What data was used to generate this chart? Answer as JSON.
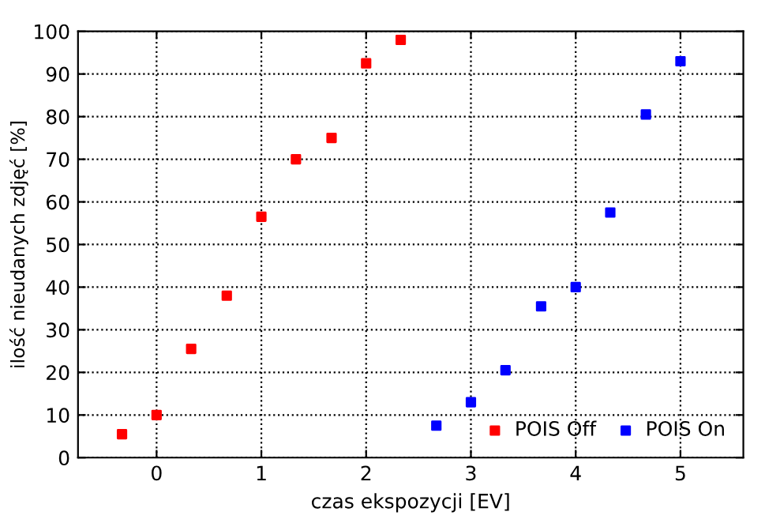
{
  "chart_data": {
    "type": "scatter",
    "xlabel": "czas ekspozycji [EV]",
    "ylabel": "ilość nieudanych zdjęć [%]",
    "series": [
      {
        "name": "POIS Off",
        "color": "#ff0000",
        "x": [
          -0.33,
          0,
          0.33,
          0.67,
          1,
          1.33,
          1.67,
          2,
          2.33
        ],
        "values": [
          5.5,
          10,
          25.5,
          38,
          56.5,
          70,
          75,
          92.5,
          98
        ]
      },
      {
        "name": "POIS On",
        "color": "#0000ff",
        "x": [
          2.67,
          3,
          3.33,
          3.67,
          4,
          4.33,
          4.67,
          5
        ],
        "values": [
          7.5,
          13,
          20.5,
          35.5,
          40,
          57.5,
          80.5,
          93
        ]
      }
    ],
    "xlim": [
      -0.75,
      5.6
    ],
    "xticks": [
      0,
      1,
      2,
      3,
      4,
      5
    ],
    "ylim": [
      0,
      100
    ],
    "yticks": [
      0,
      10,
      20,
      30,
      40,
      50,
      60,
      70,
      80,
      90,
      100
    ],
    "grid": true,
    "legend": "bottom right",
    "marker": "square"
  }
}
